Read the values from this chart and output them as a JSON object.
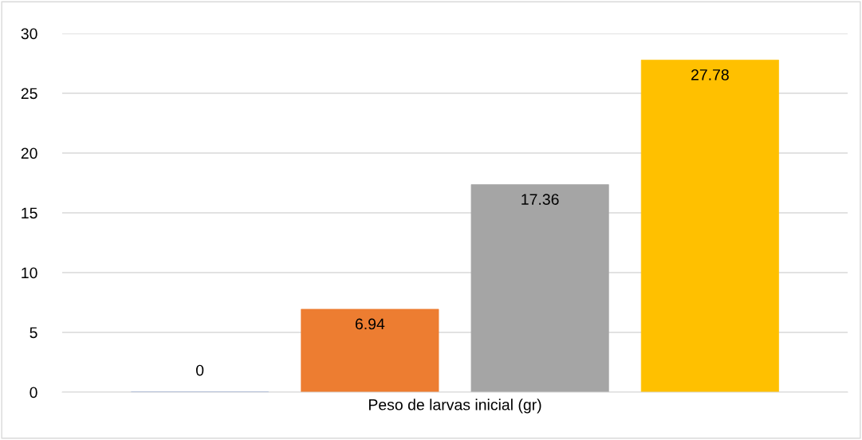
{
  "chart_data": {
    "type": "bar",
    "categories": [
      "Peso de larvas inicial (gr)"
    ],
    "series": [
      {
        "color": "#4472c4",
        "values": [
          0
        ]
      },
      {
        "color": "#ed7d31",
        "values": [
          6.94
        ]
      },
      {
        "color": "#a5a5a5",
        "values": [
          17.36
        ]
      },
      {
        "color": "#ffc000",
        "values": [
          27.78
        ]
      }
    ],
    "ylim": [
      0,
      30
    ],
    "yticks": [
      0,
      5,
      10,
      15,
      20,
      25,
      30
    ],
    "grid": "y",
    "data_labels": true
  }
}
